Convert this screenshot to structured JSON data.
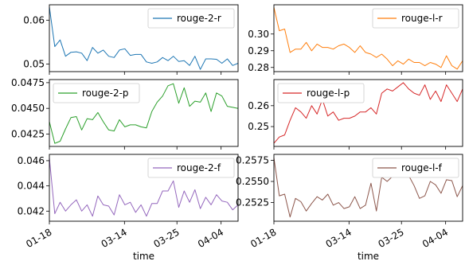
{
  "colors": {
    "rouge-2-r": "#1f77b4",
    "rouge-l-r": "#ff7f0e",
    "rouge-2-p": "#2ca02c",
    "rouge-l-p": "#d62728",
    "rouge-2-f": "#9467bd",
    "rouge-l-f": "#8c564b"
  },
  "chart_data": [
    {
      "type": "line",
      "series": [
        {
          "name": "rouge-2-r",
          "values": [
            0.063,
            0.054,
            0.0555,
            0.0518,
            0.0527,
            0.0528,
            0.0525,
            0.0508,
            0.0538,
            0.0525,
            0.0532,
            0.0518,
            0.0515,
            0.0532,
            0.0535,
            0.052,
            0.0522,
            0.0522,
            0.0505,
            0.0502,
            0.0505,
            0.0515,
            0.0508,
            0.0518,
            0.0506,
            0.0508,
            0.0497,
            0.0518,
            0.0488,
            0.0512,
            0.0512,
            0.0511,
            0.0502,
            0.0512,
            0.0497,
            0.0502
          ]
        }
      ],
      "ylim": [
        0.0483,
        0.0635
      ],
      "yticks": [
        0.05,
        0.06
      ],
      "ytick_labels": [
        "0.05",
        "0.06"
      ],
      "legend_loc": "upper right"
    },
    {
      "type": "line",
      "series": [
        {
          "name": "rouge-l-r",
          "values": [
            0.316,
            0.302,
            0.303,
            0.289,
            0.291,
            0.291,
            0.295,
            0.29,
            0.294,
            0.292,
            0.292,
            0.291,
            0.293,
            0.294,
            0.292,
            0.289,
            0.293,
            0.289,
            0.288,
            0.286,
            0.288,
            0.285,
            0.281,
            0.284,
            0.282,
            0.285,
            0.283,
            0.283,
            0.281,
            0.283,
            0.282,
            0.28,
            0.287,
            0.281,
            0.279,
            0.284
          ]
        }
      ],
      "ylim": [
        0.2775,
        0.3175
      ],
      "yticks": [
        0.28,
        0.29,
        0.3
      ],
      "ytick_labels": [
        "0.28",
        "0.29",
        "0.30"
      ],
      "legend_loc": "upper right"
    },
    {
      "type": "line",
      "series": [
        {
          "name": "rouge-2-p",
          "values": [
            0.0437,
            0.0416,
            0.0418,
            0.043,
            0.0441,
            0.0442,
            0.0429,
            0.044,
            0.0439,
            0.0446,
            0.0437,
            0.0429,
            0.0428,
            0.0439,
            0.0432,
            0.0434,
            0.0434,
            0.0432,
            0.0431,
            0.0447,
            0.0456,
            0.0462,
            0.0472,
            0.0474,
            0.0455,
            0.047,
            0.0452,
            0.0457,
            0.0456,
            0.0465,
            0.0447,
            0.0465,
            0.0462,
            0.0452,
            0.0451,
            0.045
          ]
        }
      ],
      "ylim": [
        0.0413,
        0.0478
      ],
      "yticks": [
        0.0425,
        0.045,
        0.0475
      ],
      "ytick_labels": [
        "0.0425",
        "0.0450",
        "0.0475"
      ],
      "legend_loc": "upper left"
    },
    {
      "type": "line",
      "series": [
        {
          "name": "rouge-l-p",
          "values": [
            0.242,
            0.245,
            0.246,
            0.253,
            0.259,
            0.257,
            0.254,
            0.26,
            0.256,
            0.263,
            0.255,
            0.257,
            0.253,
            0.254,
            0.254,
            0.255,
            0.257,
            0.257,
            0.259,
            0.256,
            0.266,
            0.268,
            0.267,
            0.269,
            0.271,
            0.268,
            0.266,
            0.265,
            0.27,
            0.263,
            0.267,
            0.262,
            0.27,
            0.266,
            0.262,
            0.268
          ]
        }
      ],
      "ylim": [
        0.2405,
        0.2725
      ],
      "yticks": [
        0.25,
        0.26
      ],
      "ytick_labels": [
        "0.25",
        "0.26"
      ],
      "legend_loc": "upper left"
    },
    {
      "type": "line",
      "series": [
        {
          "name": "rouge-2-f",
          "values": [
            0.0462,
            0.0418,
            0.0427,
            0.042,
            0.0425,
            0.0429,
            0.042,
            0.0425,
            0.0416,
            0.0432,
            0.0425,
            0.0424,
            0.0417,
            0.0433,
            0.0425,
            0.0427,
            0.0419,
            0.0425,
            0.0416,
            0.0426,
            0.0426,
            0.0436,
            0.0436,
            0.0444,
            0.0423,
            0.0436,
            0.0427,
            0.0437,
            0.0422,
            0.0431,
            0.0425,
            0.0433,
            0.0428,
            0.0427,
            0.0421,
            0.0425
          ]
        }
      ],
      "ylim": [
        0.0412,
        0.0465
      ],
      "yticks": [
        0.042,
        0.044,
        0.046
      ],
      "ytick_labels": [
        "0.042",
        "0.044",
        "0.046"
      ],
      "legend_loc": "upper right"
    },
    {
      "type": "line",
      "series": [
        {
          "name": "rouge-l-f",
          "values": [
            0.2578,
            0.2533,
            0.2535,
            0.2508,
            0.253,
            0.2526,
            0.2515,
            0.2524,
            0.2532,
            0.2528,
            0.2535,
            0.2522,
            0.2525,
            0.2518,
            0.252,
            0.2532,
            0.2518,
            0.2522,
            0.2548,
            0.2515,
            0.2555,
            0.255,
            0.2556,
            0.2556,
            0.2557,
            0.2557,
            0.2545,
            0.253,
            0.2533,
            0.255,
            0.2546,
            0.2536,
            0.2552,
            0.2551,
            0.2532,
            0.2545
          ]
        }
      ],
      "ylim": [
        0.2503,
        0.2582
      ],
      "yticks": [
        0.2525,
        0.255,
        0.2575
      ],
      "ytick_labels": [
        "0.2525",
        "0.2550",
        "0.2575"
      ],
      "legend_loc": "upper right"
    }
  ],
  "x_axis": {
    "tick_labels": [
      "01-18",
      "03-14",
      "03-25",
      "04-04"
    ],
    "label": "time"
  }
}
